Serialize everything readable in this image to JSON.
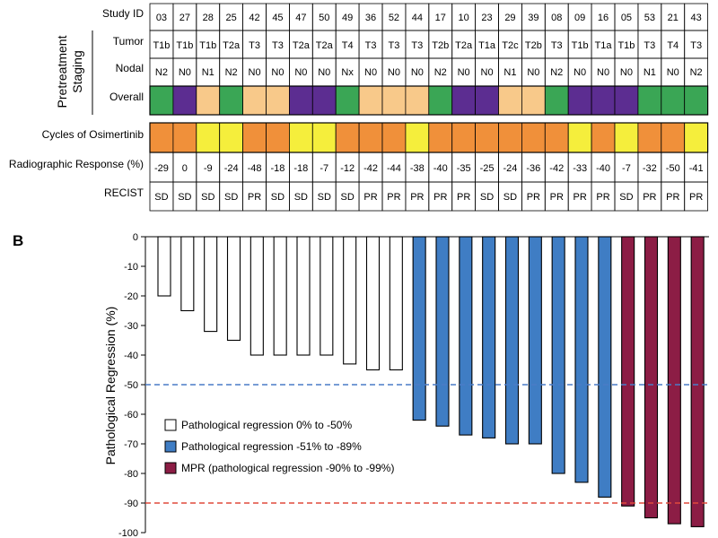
{
  "table": {
    "row_labels": {
      "study": "Study ID",
      "tumor": "Tumor",
      "nodal": "Nodal",
      "overall": "Overall",
      "cycles": "Cycles of Osimertinib",
      "response": "Radiographic Response (%)",
      "recist": "RECIST"
    },
    "group_label_line1": "Pretreatment",
    "group_label_line2": "Staging",
    "study_ids": [
      "03",
      "27",
      "28",
      "25",
      "42",
      "45",
      "47",
      "50",
      "49",
      "36",
      "52",
      "44",
      "17",
      "10",
      "23",
      "29",
      "39",
      "08",
      "09",
      "16",
      "05",
      "53",
      "21",
      "43"
    ],
    "tumor": [
      "T1b",
      "T1b",
      "T1b",
      "T2a",
      "T3",
      "T3",
      "T2a",
      "T2a",
      "T4",
      "T3",
      "T3",
      "T3",
      "T2b",
      "T2a",
      "T1a",
      "T2c",
      "T2b",
      "T3",
      "T1b",
      "T1a",
      "T1b",
      "T3",
      "T4",
      "T3"
    ],
    "nodal": [
      "N2",
      "N0",
      "N1",
      "N2",
      "N0",
      "N0",
      "N0",
      "N0",
      "Nx",
      "N0",
      "N0",
      "N0",
      "N2",
      "N0",
      "N0",
      "N1",
      "N0",
      "N2",
      "N0",
      "N0",
      "N0",
      "N1",
      "N0",
      "N2"
    ],
    "overall_colors": [
      "#3aa655",
      "#5c2d91",
      "#f8c98a",
      "#3aa655",
      "#f8c98a",
      "#f8c98a",
      "#5c2d91",
      "#5c2d91",
      "#3aa655",
      "#f8c98a",
      "#f8c98a",
      "#f8c98a",
      "#3aa655",
      "#5c2d91",
      "#5c2d91",
      "#f8c98a",
      "#f8c98a",
      "#3aa655",
      "#5c2d91",
      "#5c2d91",
      "#5c2d91",
      "#3aa655",
      "#3aa655",
      "#3aa655"
    ],
    "cycles_colors": [
      "#f0903a",
      "#f0903a",
      "#f5ee3c",
      "#f5ee3c",
      "#f0903a",
      "#f0903a",
      "#f5ee3c",
      "#f5ee3c",
      "#f0903a",
      "#f0903a",
      "#f0903a",
      "#f5ee3c",
      "#f0903a",
      "#f0903a",
      "#f0903a",
      "#f0903a",
      "#f0903a",
      "#f0903a",
      "#f5ee3c",
      "#f0903a",
      "#f5ee3c",
      "#f0903a",
      "#f0903a",
      "#f5ee3c"
    ],
    "response": [
      "-29",
      "0",
      "-9",
      "-24",
      "-48",
      "-18",
      "-18",
      "-7",
      "-12",
      "-42",
      "-44",
      "-38",
      "-40",
      "-35",
      "-25",
      "-24",
      "-36",
      "-42",
      "-33",
      "-40",
      "-7",
      "-32",
      "-50",
      "-41"
    ],
    "recist": [
      "SD",
      "SD",
      "SD",
      "SD",
      "PR",
      "SD",
      "SD",
      "SD",
      "SD",
      "PR",
      "PR",
      "PR",
      "PR",
      "PR",
      "SD",
      "SD",
      "PR",
      "PR",
      "PR",
      "PR",
      "SD",
      "PR",
      "PR",
      "PR"
    ]
  },
  "panel_label": "B",
  "chart_data": {
    "type": "bar",
    "ylabel": "Pathological Regression (%)",
    "ylim": [
      -100,
      0
    ],
    "yticks": [
      0,
      -10,
      -20,
      -30,
      -40,
      -50,
      -60,
      -70,
      -80,
      -90,
      -100
    ],
    "reference_lines": [
      {
        "value": -50,
        "color": "#4a7cc7"
      },
      {
        "value": -90,
        "color": "#e04a3c"
      }
    ],
    "values": [
      -20,
      -25,
      -32,
      -35,
      -40,
      -40,
      -40,
      -40,
      -43,
      -45,
      -45,
      -62,
      -64,
      -67,
      -68,
      -70,
      -70,
      -80,
      -83,
      -88,
      -91,
      -95,
      -97,
      -98
    ],
    "bar_groups": [
      0,
      0,
      0,
      0,
      0,
      0,
      0,
      0,
      0,
      0,
      0,
      1,
      1,
      1,
      1,
      1,
      1,
      1,
      1,
      1,
      2,
      2,
      2,
      2
    ],
    "legend": [
      {
        "label": "Pathological regression 0% to -50%",
        "color": "#ffffff"
      },
      {
        "label": "Pathological regression -51% to -89%",
        "color": "#3f7dc4"
      },
      {
        "label": "MPR (pathological regression -90% to -99%)",
        "color": "#8c1d45"
      }
    ]
  }
}
